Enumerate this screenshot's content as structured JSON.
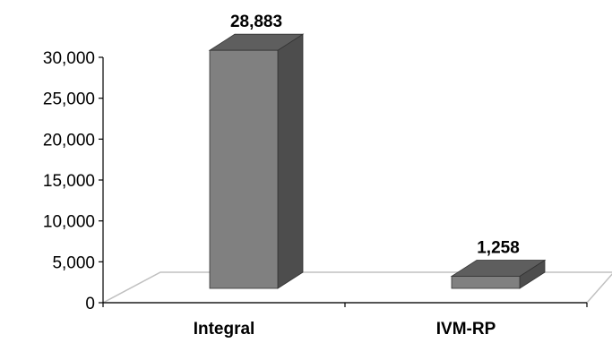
{
  "chart_data": {
    "type": "bar",
    "style": "3d-column",
    "categories": [
      "Integral",
      "IVM-RP"
    ],
    "values": [
      28883,
      1258
    ],
    "data_labels": [
      "28,883",
      "1,258"
    ],
    "ylim": [
      0,
      30000
    ],
    "yticks": [
      0,
      5000,
      10000,
      15000,
      20000,
      25000,
      30000
    ],
    "ytick_labels": [
      "0",
      "5,000",
      "10,000",
      "15,000",
      "20,000",
      "25,000",
      "30,000"
    ],
    "title": "",
    "xlabel": "",
    "ylabel": "",
    "grid": false,
    "legend": "none",
    "colors": {
      "bar_front": "#808080",
      "bar_side": "#4d4d4d",
      "bar_top": "#5e5e5e",
      "floor_line": "#c0c0c0",
      "axis": "#000000"
    }
  }
}
